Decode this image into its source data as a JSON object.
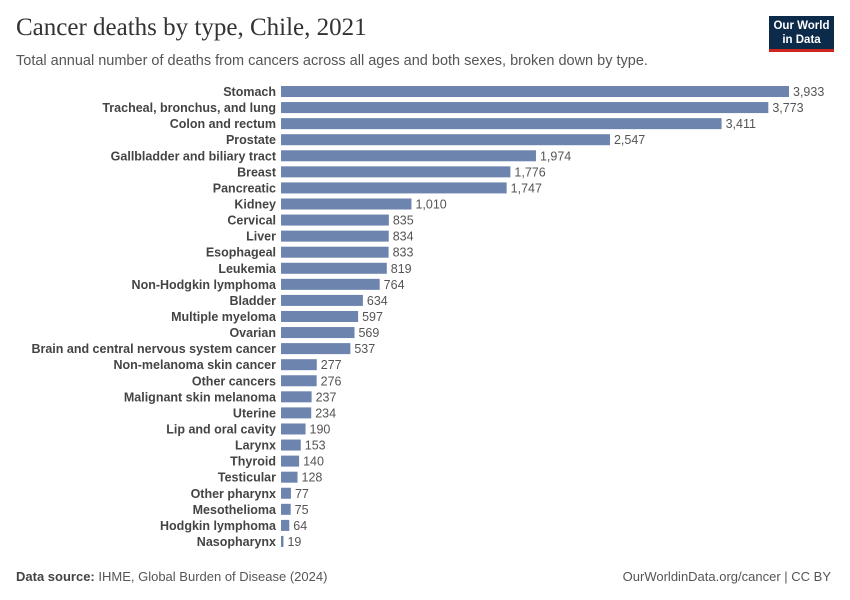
{
  "header": {
    "title": "Cancer deaths by type, Chile, 2021",
    "subtitle": "Total annual number of deaths from cancers across all ages and both sexes, broken down by type."
  },
  "logo": {
    "line1": "Our World",
    "line2": "in Data",
    "bg_color": "#0c2a4a",
    "accent_color": "#ce261e"
  },
  "footer": {
    "source_label": "Data source:",
    "source_text": "IHME, Global Burden of Disease (2024)",
    "right_text": "OurWorldinData.org/cancer | CC BY"
  },
  "chart_data": {
    "type": "bar",
    "orientation": "horizontal",
    "bar_color": "#6d84ae",
    "categories": [
      "Stomach",
      "Tracheal, bronchus, and lung",
      "Colon and rectum",
      "Prostate",
      "Gallbladder and biliary tract",
      "Breast",
      "Pancreatic",
      "Kidney",
      "Cervical",
      "Liver",
      "Esophageal",
      "Leukemia",
      "Non-Hodgkin lymphoma",
      "Bladder",
      "Multiple myeloma",
      "Ovarian",
      "Brain and central nervous system cancer",
      "Non-melanoma skin cancer",
      "Other cancers",
      "Malignant skin melanoma",
      "Uterine",
      "Lip and oral cavity",
      "Larynx",
      "Thyroid",
      "Testicular",
      "Other pharynx",
      "Mesothelioma",
      "Hodgkin lymphoma",
      "Nasopharynx"
    ],
    "values": [
      3933,
      3773,
      3411,
      2547,
      1974,
      1776,
      1747,
      1010,
      835,
      834,
      833,
      819,
      764,
      634,
      597,
      569,
      537,
      277,
      276,
      237,
      234,
      190,
      153,
      140,
      128,
      77,
      75,
      64,
      19
    ],
    "value_labels": [
      "3,933",
      "3,773",
      "3,411",
      "2,547",
      "1,974",
      "1,776",
      "1,747",
      "1,010",
      "835",
      "834",
      "833",
      "819",
      "764",
      "634",
      "597",
      "569",
      "537",
      "277",
      "276",
      "237",
      "234",
      "190",
      "153",
      "140",
      "128",
      "77",
      "75",
      "64",
      "19"
    ],
    "xlim": [
      0,
      3933
    ]
  }
}
